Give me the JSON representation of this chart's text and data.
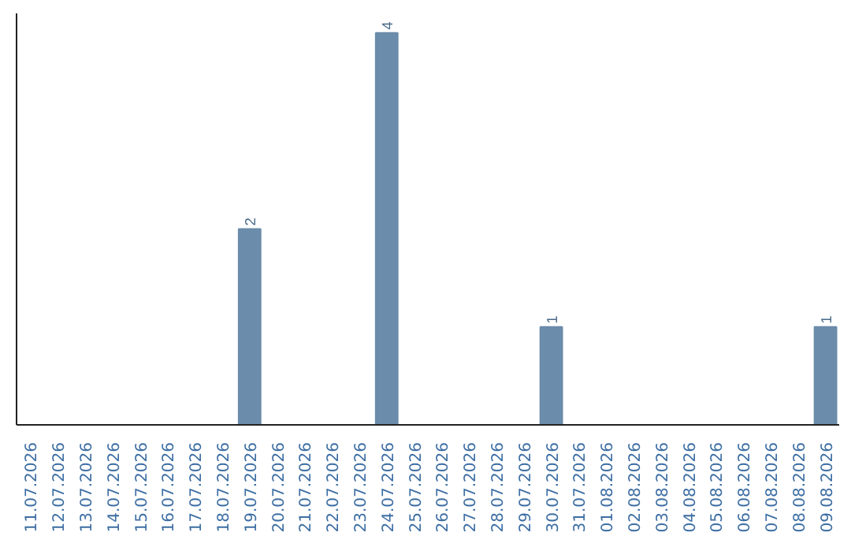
{
  "chart_data": {
    "type": "bar",
    "categories": [
      "11.07.2026",
      "12.07.2026",
      "13.07.2026",
      "14.07.2026",
      "15.07.2026",
      "16.07.2026",
      "17.07.2026",
      "18.07.2026",
      "19.07.2026",
      "20.07.2026",
      "21.07.2026",
      "22.07.2026",
      "23.07.2026",
      "24.07.2026",
      "25.07.2026",
      "26.07.2026",
      "27.07.2026",
      "28.07.2026",
      "29.07.2026",
      "30.07.2026",
      "31.07.2026",
      "01.08.2026",
      "02.08.2026",
      "03.08.2026",
      "04.08.2026",
      "05.08.2026",
      "06.08.2026",
      "07.08.2026",
      "08.08.2026",
      "09.08.2026"
    ],
    "values": [
      0,
      0,
      0,
      0,
      0,
      0,
      0,
      0,
      2,
      0,
      0,
      0,
      0,
      4,
      0,
      0,
      0,
      0,
      0,
      1,
      0,
      0,
      0,
      0,
      0,
      0,
      0,
      0,
      0,
      1
    ],
    "value_labels": [
      null,
      null,
      null,
      null,
      null,
      null,
      null,
      null,
      "2",
      null,
      null,
      null,
      null,
      "4",
      null,
      null,
      null,
      null,
      null,
      "1",
      null,
      null,
      null,
      null,
      null,
      null,
      null,
      null,
      null,
      "1"
    ],
    "color": "#6b8caa",
    "tick_labels": "x",
    "grid": false
  }
}
